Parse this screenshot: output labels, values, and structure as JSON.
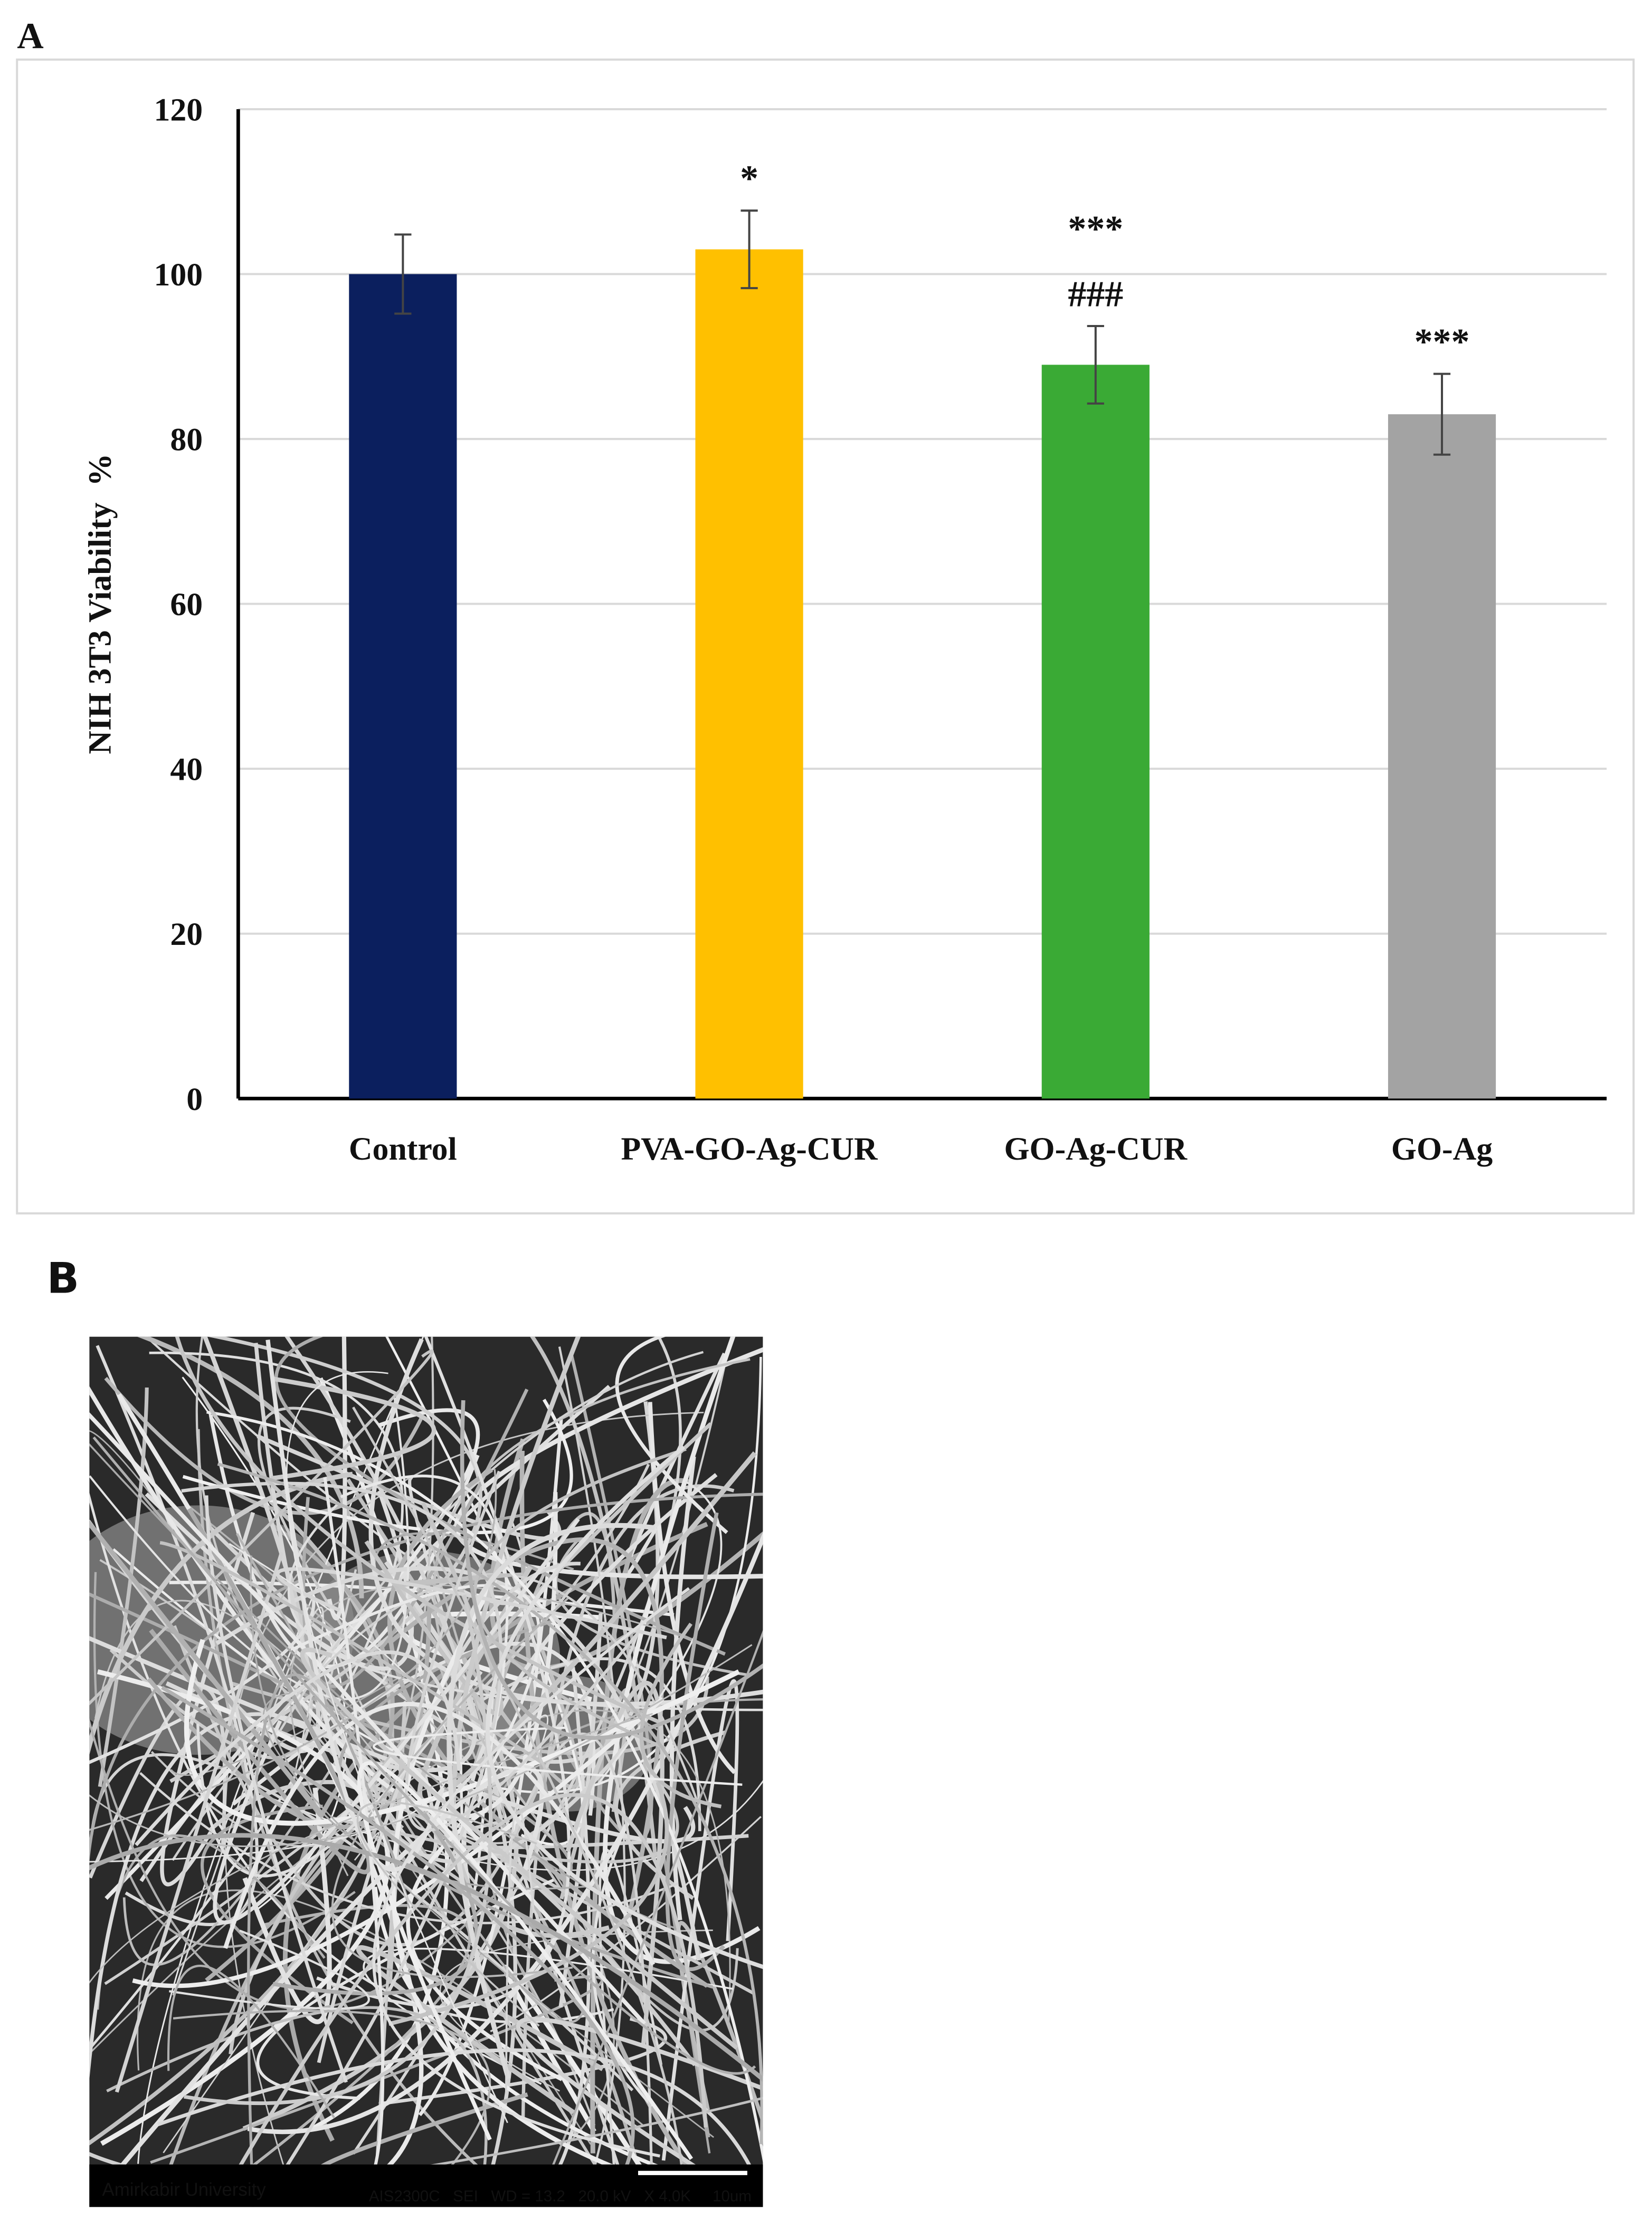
{
  "chart_data": {
    "type": "bar",
    "panel_label": "A",
    "ylabel": "NIH 3T3 Viability  %",
    "categories": [
      "Control",
      "PVA-GO-Ag-CUR",
      "GO-Ag-CUR",
      "GO-Ag"
    ],
    "series": [
      {
        "values": [
          100,
          103,
          89,
          83
        ],
        "errors": [
          4.8,
          4.7,
          4.7,
          4.9
        ],
        "colors": [
          "#0b1f5e",
          "#ffc000",
          "#3aaa35",
          "#a3a3a3"
        ]
      }
    ],
    "annotations": [
      {
        "category": "PVA-GO-Ag-CUR",
        "lines": [
          "*"
        ]
      },
      {
        "category": "GO-Ag-CUR",
        "lines": [
          "***",
          "###"
        ]
      },
      {
        "category": "GO-Ag",
        "lines": [
          "***"
        ]
      }
    ],
    "ylim": [
      0,
      120
    ],
    "yticks": [
      0,
      20,
      40,
      60,
      80,
      100,
      120
    ],
    "grid": true
  },
  "image_panel": {
    "panel_label": "B",
    "caption_left": "Amirkabir University",
    "caption_right": "AIS2300C   SEI   WD = 13.2   20.0 kV   X 4.0K     10um"
  }
}
